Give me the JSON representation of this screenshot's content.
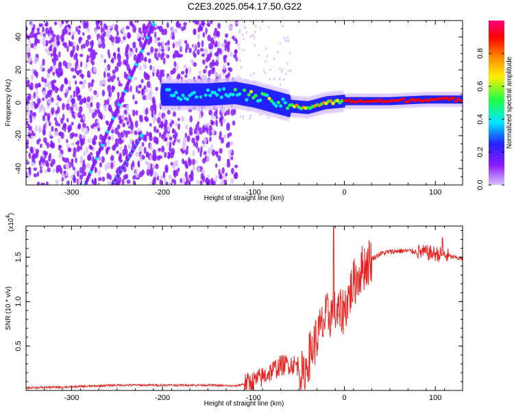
{
  "title": "C2E3.2025.054.17.50.G22",
  "chart_data": [
    {
      "type": "heatmap",
      "xlabel": "Height of straight line (km)",
      "ylabel": "Frequency (Hz)",
      "xlim": [
        -350,
        130
      ],
      "ylim": [
        -50,
        50
      ],
      "xticks": [
        -300,
        -200,
        -100,
        0,
        100
      ],
      "yticks": [
        -40,
        -20,
        0,
        20,
        40
      ],
      "colorbar": {
        "label": "Normalized spectral amplitude",
        "range": [
          0.0,
          1.0
        ],
        "ticks": [
          "0.0",
          "0.2",
          "0.4",
          "0.6",
          "0.8"
        ],
        "colors": [
          "#d9c2ff",
          "#8a1cff",
          "#2222ff",
          "#00e5ff",
          "#22ff44",
          "#ffee00",
          "#ff8800",
          "#ff0000",
          "#ff0080"
        ]
      },
      "features": {
        "streak_upper": {
          "x_start": -285,
          "y_start": -50,
          "x_end": -210,
          "y_end": 48,
          "amplitude": 0.3
        },
        "streak_lower": {
          "x_start": -255,
          "y_start": -50,
          "x_end": -223,
          "y_end": -20,
          "amplitude": 0.3
        },
        "band_ridge": [
          {
            "x": -200,
            "y": 5
          },
          {
            "x": -180,
            "y": 5
          },
          {
            "x": -150,
            "y": 5
          },
          {
            "x": -120,
            "y": 6
          },
          {
            "x": -100,
            "y": 4
          },
          {
            "x": -80,
            "y": 1
          },
          {
            "x": -60,
            "y": -2
          },
          {
            "x": -40,
            "y": -3
          },
          {
            "x": -20,
            "y": 0
          },
          {
            "x": 0,
            "y": 1
          },
          {
            "x": 20,
            "y": 1
          },
          {
            "x": 50,
            "y": 1
          },
          {
            "x": 90,
            "y": 2
          },
          {
            "x": 130,
            "y": 2
          }
        ]
      }
    },
    {
      "type": "line",
      "xlabel": "Height of straight line (km)",
      "ylabel": "SNR (10 * v/v)",
      "y_scale_label": "(x10",
      "y_scale_exponent": "4",
      "xlim": [
        -350,
        130
      ],
      "ylim": [
        0,
        1.85
      ],
      "xticks": [
        -300,
        -200,
        -100,
        0,
        100
      ],
      "yticks": [
        0.5,
        1.0,
        1.5
      ],
      "ytick_labels": [
        "0.5",
        "1.0",
        "1.5"
      ],
      "line_color": "#e8231f",
      "series": [
        {
          "x": [
            -350,
            -300,
            -250,
            -200,
            -150,
            -120,
            -100,
            -90,
            -80,
            -70,
            -60,
            -50,
            -45,
            -40,
            -30,
            -20,
            -12,
            -5,
            0,
            10,
            20,
            30,
            40,
            50,
            60,
            70,
            80,
            90,
            100,
            110,
            120,
            130
          ],
          "y": [
            0.03,
            0.04,
            0.06,
            0.06,
            0.06,
            0.05,
            0.1,
            0.15,
            0.22,
            0.28,
            0.3,
            0.28,
            0.12,
            0.35,
            0.6,
            0.82,
            0.88,
            0.85,
            0.92,
            1.2,
            1.38,
            1.48,
            1.54,
            1.56,
            1.57,
            1.57,
            1.56,
            1.55,
            1.54,
            1.52,
            1.5,
            1.48
          ]
        }
      ]
    }
  ]
}
